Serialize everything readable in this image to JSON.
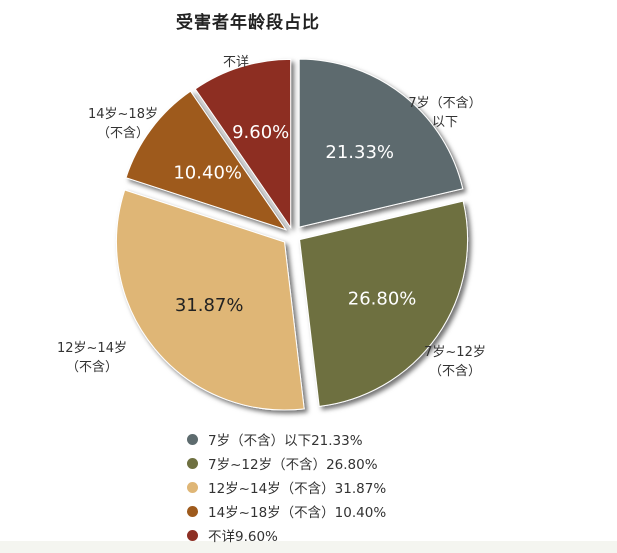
{
  "chart_data": {
    "type": "pie",
    "title": "受害者年龄段占比",
    "categories": [
      "7岁（不含）以下",
      "7岁~12岁（不含）",
      "12岁~14岁（不含）",
      "14岁~18岁（不含）",
      "不详"
    ],
    "values": [
      21.33,
      26.8,
      31.87,
      10.4,
      9.6
    ],
    "value_labels": [
      "21.33%",
      "26.80%",
      "31.87%",
      "10.40%",
      "9.60%"
    ],
    "callout_labels": [
      [
        "7岁（不含）",
        "以下"
      ],
      [
        "7岁~12岁",
        "（不含）"
      ],
      [
        "12岁~14岁",
        "（不含）"
      ],
      [
        "14岁~18岁",
        "（不含）"
      ],
      [
        "不详"
      ]
    ],
    "legend": {
      "placement": "bottom",
      "entries": [
        "7岁（不含）以下21.33%",
        "7岁~12岁（不含）26.80%",
        "12岁~14岁（不含）31.87%",
        "14岁~18岁（不含）10.40%",
        "不详9.60%"
      ]
    },
    "colors": [
      "#5d6b6e",
      "#6e7040",
      "#dfb676",
      "#9e5a1c",
      "#8d2f24"
    ],
    "label_colors": [
      "#ffffff",
      "#ffffff",
      "#222222",
      "#ffffff",
      "#ffffff"
    ],
    "exploded": true,
    "start_angle_deg": 0,
    "direction": "clockwise"
  }
}
